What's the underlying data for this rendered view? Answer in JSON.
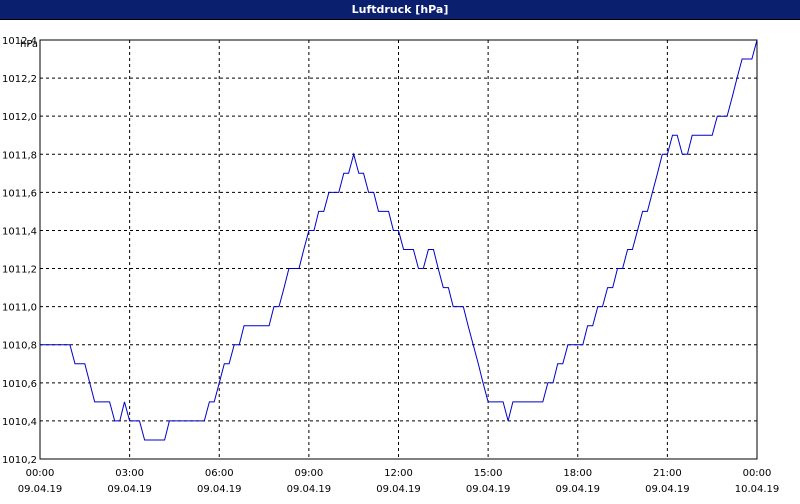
{
  "window": {
    "title": "Luftdruck [hPa]"
  },
  "chart_data": {
    "type": "line",
    "title": "Luftdruck [hPa]",
    "ylabel": "hPa",
    "xlabel": "",
    "ylim": [
      1010.2,
      1012.4
    ],
    "xlim": [
      0,
      24
    ],
    "grid": true,
    "y_ticks": [
      {
        "value": 1010.2,
        "label": "1010,2"
      },
      {
        "value": 1010.4,
        "label": "1010,4"
      },
      {
        "value": 1010.6,
        "label": "1010,6"
      },
      {
        "value": 1010.8,
        "label": "1010,8"
      },
      {
        "value": 1011.0,
        "label": "1011,0"
      },
      {
        "value": 1011.2,
        "label": "1011,2"
      },
      {
        "value": 1011.4,
        "label": "1011,4"
      },
      {
        "value": 1011.6,
        "label": "1011,6"
      },
      {
        "value": 1011.8,
        "label": "1011,8"
      },
      {
        "value": 1012.0,
        "label": "1012,0"
      },
      {
        "value": 1012.2,
        "label": "1012,2"
      },
      {
        "value": 1012.4,
        "label": "1012,4"
      }
    ],
    "x_ticks": [
      {
        "value": 0,
        "time": "00:00",
        "date": "09.04.19"
      },
      {
        "value": 3,
        "time": "03:00",
        "date": "09.04.19"
      },
      {
        "value": 6,
        "time": "06:00",
        "date": "09.04.19"
      },
      {
        "value": 9,
        "time": "09:00",
        "date": "09.04.19"
      },
      {
        "value": 12,
        "time": "12:00",
        "date": "09.04.19"
      },
      {
        "value": 15,
        "time": "15:00",
        "date": "09.04.19"
      },
      {
        "value": 18,
        "time": "18:00",
        "date": "09.04.19"
      },
      {
        "value": 21,
        "time": "21:00",
        "date": "09.04.19"
      },
      {
        "value": 24,
        "time": "00:00",
        "date": "10.04.19"
      }
    ],
    "series": [
      {
        "color": "#0000cc",
        "points": [
          [
            0.0,
            1010.8
          ],
          [
            1.0,
            1010.8
          ],
          [
            1.17,
            1010.7
          ],
          [
            1.5,
            1010.7
          ],
          [
            1.83,
            1010.5
          ],
          [
            2.33,
            1010.5
          ],
          [
            2.5,
            1010.4
          ],
          [
            2.67,
            1010.4
          ],
          [
            2.83,
            1010.5
          ],
          [
            3.0,
            1010.4
          ],
          [
            3.33,
            1010.4
          ],
          [
            3.5,
            1010.3
          ],
          [
            4.17,
            1010.3
          ],
          [
            4.33,
            1010.4
          ],
          [
            5.5,
            1010.4
          ],
          [
            5.67,
            1010.5
          ],
          [
            5.83,
            1010.5
          ],
          [
            6.0,
            1010.6
          ],
          [
            6.17,
            1010.7
          ],
          [
            6.33,
            1010.7
          ],
          [
            6.5,
            1010.8
          ],
          [
            6.67,
            1010.8
          ],
          [
            6.83,
            1010.9
          ],
          [
            7.67,
            1010.9
          ],
          [
            7.83,
            1011.0
          ],
          [
            8.0,
            1011.0
          ],
          [
            8.17,
            1011.1
          ],
          [
            8.33,
            1011.2
          ],
          [
            8.67,
            1011.2
          ],
          [
            8.83,
            1011.3
          ],
          [
            9.0,
            1011.4
          ],
          [
            9.17,
            1011.4
          ],
          [
            9.33,
            1011.5
          ],
          [
            9.5,
            1011.5
          ],
          [
            9.67,
            1011.6
          ],
          [
            10.0,
            1011.6
          ],
          [
            10.17,
            1011.7
          ],
          [
            10.33,
            1011.7
          ],
          [
            10.5,
            1011.8
          ],
          [
            10.67,
            1011.7
          ],
          [
            10.83,
            1011.7
          ],
          [
            11.0,
            1011.6
          ],
          [
            11.17,
            1011.6
          ],
          [
            11.33,
            1011.5
          ],
          [
            11.67,
            1011.5
          ],
          [
            11.83,
            1011.4
          ],
          [
            12.0,
            1011.4
          ],
          [
            12.17,
            1011.3
          ],
          [
            12.5,
            1011.3
          ],
          [
            12.67,
            1011.2
          ],
          [
            12.83,
            1011.2
          ],
          [
            13.0,
            1011.3
          ],
          [
            13.17,
            1011.3
          ],
          [
            13.33,
            1011.2
          ],
          [
            13.5,
            1011.1
          ],
          [
            13.67,
            1011.1
          ],
          [
            13.83,
            1011.0
          ],
          [
            14.17,
            1011.0
          ],
          [
            14.33,
            1010.9
          ],
          [
            14.5,
            1010.8
          ],
          [
            14.67,
            1010.7
          ],
          [
            14.83,
            1010.6
          ],
          [
            15.0,
            1010.5
          ],
          [
            15.5,
            1010.5
          ],
          [
            15.67,
            1010.4
          ],
          [
            15.83,
            1010.5
          ],
          [
            16.83,
            1010.5
          ],
          [
            17.0,
            1010.6
          ],
          [
            17.17,
            1010.6
          ],
          [
            17.33,
            1010.7
          ],
          [
            17.5,
            1010.7
          ],
          [
            17.67,
            1010.8
          ],
          [
            18.17,
            1010.8
          ],
          [
            18.33,
            1010.9
          ],
          [
            18.5,
            1010.9
          ],
          [
            18.67,
            1011.0
          ],
          [
            18.83,
            1011.0
          ],
          [
            19.0,
            1011.1
          ],
          [
            19.17,
            1011.1
          ],
          [
            19.33,
            1011.2
          ],
          [
            19.5,
            1011.2
          ],
          [
            19.67,
            1011.3
          ],
          [
            19.83,
            1011.3
          ],
          [
            20.0,
            1011.4
          ],
          [
            20.17,
            1011.5
          ],
          [
            20.33,
            1011.5
          ],
          [
            20.5,
            1011.6
          ],
          [
            20.67,
            1011.7
          ],
          [
            20.83,
            1011.8
          ],
          [
            21.0,
            1011.8
          ],
          [
            21.17,
            1011.9
          ],
          [
            21.33,
            1011.9
          ],
          [
            21.5,
            1011.8
          ],
          [
            21.67,
            1011.8
          ],
          [
            21.83,
            1011.9
          ],
          [
            22.5,
            1011.9
          ],
          [
            22.67,
            1012.0
          ],
          [
            23.0,
            1012.0
          ],
          [
            23.17,
            1012.1
          ],
          [
            23.33,
            1012.2
          ],
          [
            23.5,
            1012.3
          ],
          [
            23.83,
            1012.3
          ],
          [
            24.0,
            1012.4
          ]
        ]
      }
    ]
  },
  "colors": {
    "titlebar": "#0a1f6e",
    "line": "#0000cc",
    "grid": "#000000"
  }
}
